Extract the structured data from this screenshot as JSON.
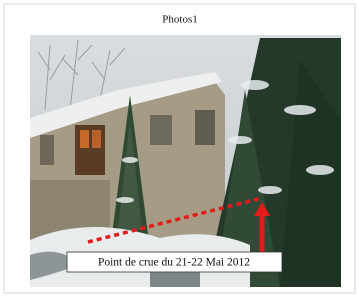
{
  "figure": {
    "title": "Photos1",
    "annotation": "Point de crue du 21-22 Mai 2012"
  }
}
